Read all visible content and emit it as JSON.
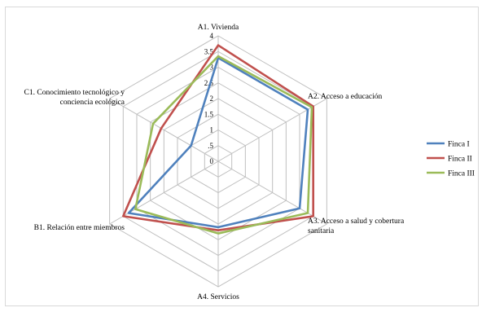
{
  "chart_data": {
    "type": "radar",
    "title": "",
    "axes": [
      "A1. Vivienda",
      "A2. Acceso a educación",
      "A3. Acceso a salud y cobertura sanitaria",
      "A4. Servicios",
      "B1. Relación entre miembros",
      "C1. Conocimiento tecnológico y conciencia ecológica"
    ],
    "axis_label_lines": [
      [
        "A1. Vivienda"
      ],
      [
        "A2. Acceso a educación"
      ],
      [
        "A3. Acceso a salud y cobertura",
        "sanitaria"
      ],
      [
        "A4. Servicios"
      ],
      [
        "B1. Relación entre miembros"
      ],
      [
        "C1. Conocimiento tecnológico y",
        "conciencia ecológica"
      ]
    ],
    "rmin": 0,
    "rmax": 4,
    "ticks": [
      0,
      0.5,
      1,
      1.5,
      2,
      2.5,
      3,
      3.5,
      4
    ],
    "tick_labels": [
      "0",
      ".5",
      "1",
      "1.5",
      "2",
      "2.5",
      "3",
      "3.5",
      "4"
    ],
    "series": [
      {
        "name": "Finca I",
        "color": "#4f81bd",
        "values": [
          3.3,
          3.3,
          3.0,
          2.1,
          3.3,
          1.0
        ]
      },
      {
        "name": "Finca II",
        "color": "#c0504d",
        "values": [
          3.7,
          3.5,
          3.5,
          2.2,
          3.5,
          2.1
        ]
      },
      {
        "name": "Finca III",
        "color": "#9bbb59",
        "values": [
          3.35,
          3.45,
          3.3,
          2.3,
          3.05,
          2.4
        ]
      }
    ],
    "grid": true,
    "legend": "right"
  }
}
